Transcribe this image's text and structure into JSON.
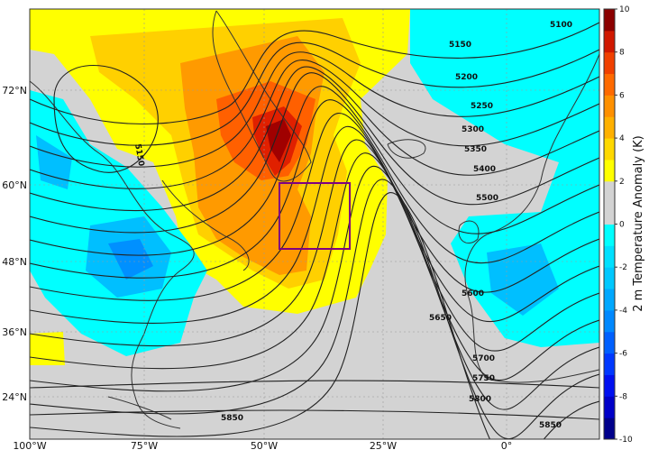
{
  "map": {
    "lon_labels": [
      "100°W",
      "75°W",
      "50°W",
      "25°W",
      "0°"
    ],
    "lat_labels": [
      "72°N",
      "60°N",
      "48°N",
      "36°N",
      "24°N"
    ],
    "contour_labels": [
      "5100",
      "5150",
      "5200",
      "5250",
      "5300",
      "5350",
      "5400",
      "5500",
      "5600",
      "5650",
      "5700",
      "5750",
      "5800",
      "5850",
      "5850",
      "5150"
    ]
  },
  "colorbar": {
    "label": "2 m Temperature Anomaly (K)",
    "lim": [
      -10,
      10
    ],
    "ticks": [
      -10,
      -8,
      -6,
      -4,
      -2,
      0,
      2,
      4,
      6,
      8,
      10
    ],
    "colors": [
      "#00008b",
      "#0000c8",
      "#0010f0",
      "#0038ff",
      "#0060ff",
      "#0088ff",
      "#00a8ff",
      "#00c8ff",
      "#00e0ff",
      "#00ffff",
      "#d3d3d3",
      "#d3d3d3",
      "#ffff00",
      "#ffd800",
      "#ffb000",
      "#ff9000",
      "#ff6a00",
      "#f04000",
      "#d01800",
      "#8b0000"
    ]
  }
}
